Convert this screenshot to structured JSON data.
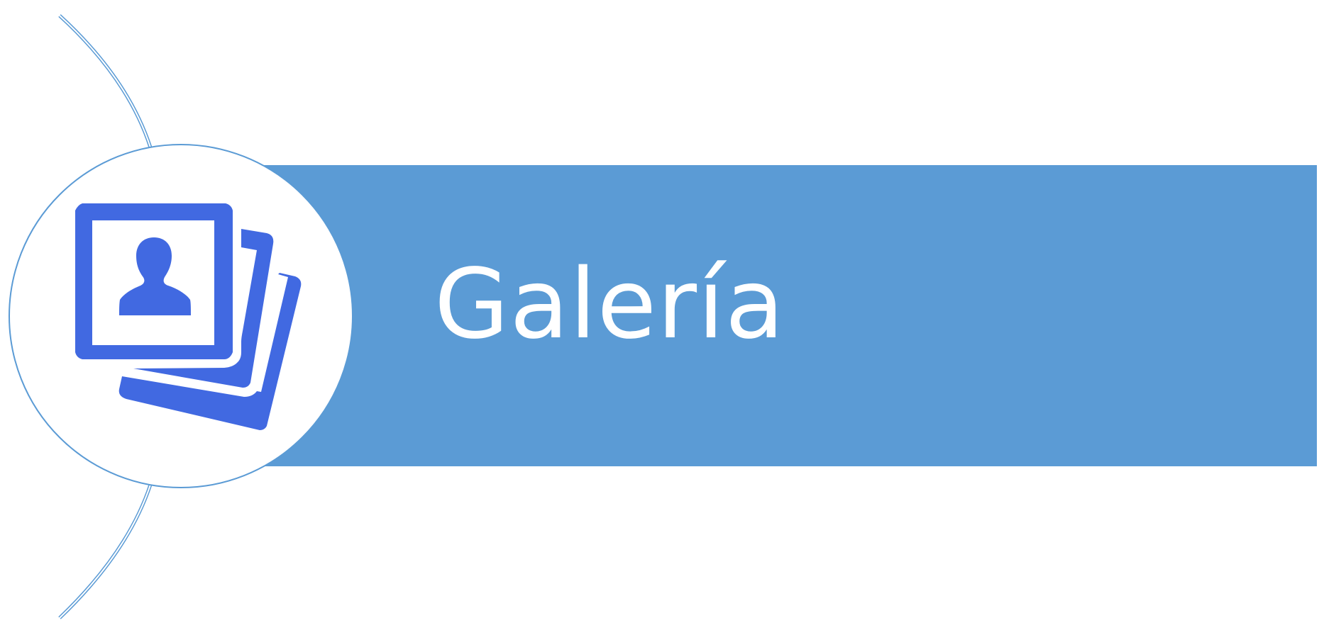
{
  "slide": {
    "title": "Galería"
  },
  "colors": {
    "band": "#5b9bd5",
    "circle_stroke": "#5b9bd5",
    "icon": "#4169e1",
    "title_text": "#ffffff",
    "background": "#ffffff"
  },
  "icons": {
    "main": "photo-gallery-icon"
  }
}
